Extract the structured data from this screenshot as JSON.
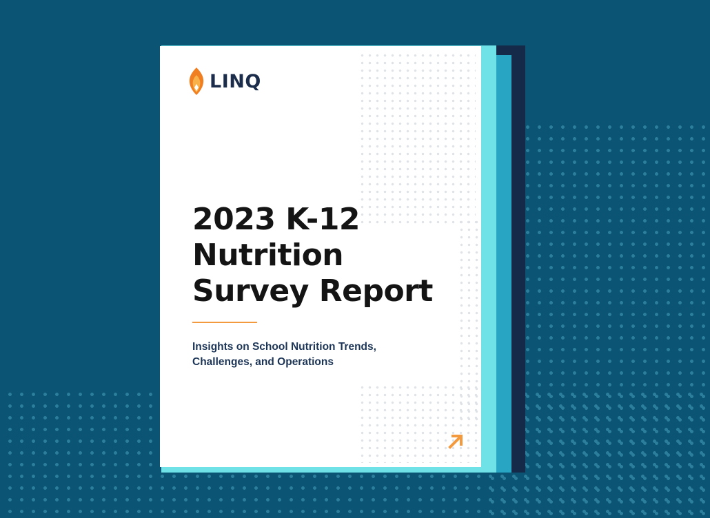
{
  "cover": {
    "brand": "LINQ",
    "title_lines": [
      "2023 K-12",
      "Nutrition",
      "Survey Report"
    ],
    "subtitle_lines": [
      "Insights on School Nutrition Trends,",
      "Challenges, and Operations"
    ]
  },
  "icons": {
    "logo": "flame-logo-icon",
    "corner": "arrow-up-right-icon"
  },
  "colors": {
    "background": "#0b5473",
    "accent_orange": "#f39a3e",
    "cyan_layer": "#6fe2e7",
    "teal_layer": "#27a5c2",
    "navy_layer": "#142a48",
    "brand_navy": "#1b2d4a"
  }
}
